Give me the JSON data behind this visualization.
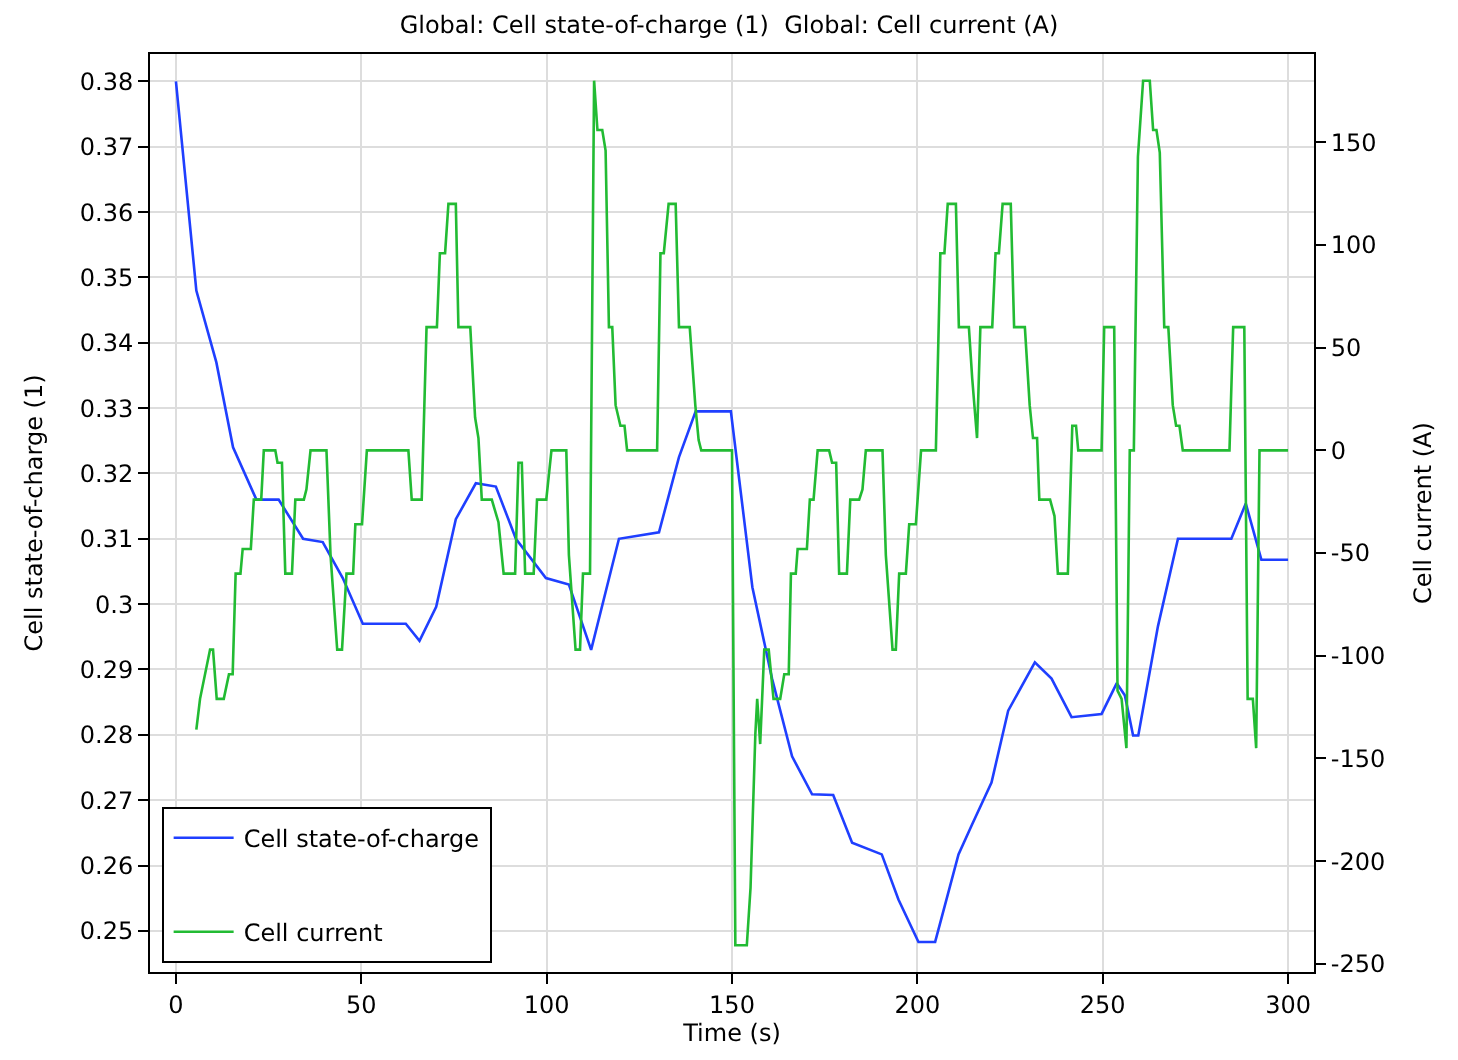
{
  "chart_data": {
    "type": "line",
    "title": "Global: Cell state-of-charge (1)  Global: Cell current (A)",
    "xlabel": "Time (s)",
    "ylabel": "Cell state-of-charge (1)",
    "y2label": "Cell current (A)",
    "xlim": [
      -7,
      307
    ],
    "xticks": [
      0,
      50,
      100,
      150,
      200,
      250,
      300
    ],
    "ylim": [
      0.2437,
      0.3842
    ],
    "yticks": [
      0.25,
      0.26,
      0.27,
      0.28,
      0.29,
      {
        "value": 0.3,
        "label": "0.3"
      },
      0.31,
      0.32,
      0.33,
      0.34,
      0.35,
      0.36,
      0.37,
      0.38
    ],
    "y2lim": [
      -254,
      193
    ],
    "y2ticks": [
      -250,
      -200,
      -150,
      -100,
      -50,
      0,
      50,
      100,
      150
    ],
    "grid": true,
    "legend": "bottom left",
    "line_style": "solid",
    "marker": "none",
    "series": [
      {
        "name": "Cell state-of-charge",
        "color": "#1f3fff",
        "x": [
          0,
          5.5,
          10.9,
          15.4,
          21.7,
          27.7,
          34.3,
          39.6,
          45,
          50.4,
          62,
          65.7,
          70.2,
          75.5,
          80.9,
          86.3,
          91.7,
          99.8,
          106,
          112,
          119.5,
          130.3,
          135.7,
          140.2,
          149.7,
          155.5,
          160.8,
          166.2,
          171.6,
          177.3,
          182.4,
          190.4,
          194.9,
          200.3,
          204.8,
          211.1,
          214.7,
          220,
          224.5,
          231.7,
          236.2,
          241.6,
          249.7,
          253.8,
          256,
          258.2,
          259.6,
          264.9,
          270.3,
          284.7,
          288.6,
          292.8,
          300
        ],
        "values": [
          0.38,
          0.348,
          0.337,
          0.324,
          0.316,
          0.316,
          0.31,
          0.3095,
          0.304,
          0.297,
          0.297,
          0.2944,
          0.2996,
          0.313,
          0.3185,
          0.318,
          0.31,
          0.304,
          0.303,
          0.293,
          0.31,
          0.311,
          0.3225,
          0.3295,
          0.3295,
          0.3026,
          0.2886,
          0.2767,
          0.2709,
          0.2708,
          0.2635,
          0.2617,
          0.2548,
          0.2483,
          0.2483,
          0.2617,
          0.2662,
          0.2727,
          0.2837,
          0.2911,
          0.2886,
          0.2827,
          0.2832,
          0.2879,
          0.286,
          0.2799,
          0.2799,
          0.2966,
          0.31,
          0.31,
          0.3154,
          0.3068,
          0.3068
        ]
      },
      {
        "name": "Cell current",
        "color": "#22bb33",
        "axis": "y2",
        "x": [
          5.5,
          6.5,
          9.2,
          10,
          11,
          12.9,
          14.3,
          15.3,
          16.1,
          17.4,
          18,
          20.2,
          21,
          23,
          23.7,
          26.8,
          27.4,
          28.6,
          29.5,
          31.3,
          32.2,
          34.5,
          35.2,
          36.3,
          40.6,
          41.7,
          43.5,
          44.8,
          46,
          47.8,
          48.4,
          50.2,
          51.5,
          62.7,
          63.6,
          66.3,
          67.6,
          70.4,
          71.2,
          72.6,
          73.5,
          75.5,
          76.2,
          79.4,
          80.7,
          81.6,
          82.5,
          85.2,
          87,
          88.4,
          91.5,
          92.4,
          93.3,
          94.2,
          96.5,
          97.4,
          99.9,
          101.3,
          105.3,
          106,
          107.8,
          109,
          109.8,
          111.7,
          112.8,
          113.7,
          115,
          115.9,
          116.8,
          117.7,
          118.6,
          119.9,
          121,
          121.7,
          129.8,
          130.7,
          131.6,
          132.9,
          134.8,
          135.7,
          138.6,
          140.1,
          141,
          141.7,
          150,
          150.9,
          154,
          155,
          156.3,
          156.8,
          157.6,
          158.7,
          159.9,
          161.2,
          163,
          164.1,
          165.3,
          165.9,
          167.2,
          167.7,
          170.2,
          171,
          172,
          173.1,
          176.2,
          177,
          178.1,
          178.9,
          181,
          181.9,
          184.3,
          185.2,
          186.1,
          190.6,
          191.5,
          193.3,
          194.2,
          195.1,
          196.9,
          197.8,
          199.6,
          201,
          205,
          206.2,
          207.3,
          208.2,
          210.4,
          211.2,
          213.9,
          214.8,
          216.1,
          217,
          220.2,
          221.1,
          222,
          223,
          225.2,
          226.1,
          229,
          230.3,
          231.2,
          232.3,
          232.9,
          235.8,
          237,
          237.9,
          240.6,
          241.8,
          242.8,
          243.4,
          249.7,
          250.4,
          253.1,
          254,
          255.1,
          256.4,
          257.3,
          258.4,
          259.5,
          260.9,
          262.7,
          263.6,
          264.5,
          265.4,
          266.6,
          267.7,
          268.9,
          269.8,
          270.7,
          271.6,
          284.2,
          285.2,
          288.2,
          289.1,
          290.5,
          291.4,
          292.3,
          300
        ],
        "values": [
          -136,
          -121,
          -97,
          -97,
          -121,
          -121,
          -109,
          -109,
          -60,
          -60,
          -48,
          -48,
          -24,
          -24,
          0,
          0,
          -6,
          -6,
          -60,
          -60,
          -24,
          -24,
          -19,
          0,
          0,
          -51,
          -97,
          -97,
          -60,
          -60,
          -36,
          -36,
          0,
          0,
          -24,
          -24,
          60,
          60,
          96,
          96,
          120,
          120,
          60,
          60,
          16,
          6,
          -24,
          -24,
          -35,
          -60,
          -60,
          -6,
          -6,
          -60,
          -60,
          -24,
          -24,
          0,
          0,
          -51,
          -97,
          -97,
          -60,
          -60,
          180,
          156,
          156,
          146,
          60,
          60,
          22,
          12,
          12,
          0,
          0,
          96,
          96,
          120,
          120,
          60,
          60,
          22,
          5,
          0,
          0,
          -241,
          -241,
          -213,
          -138,
          -121,
          -143,
          -97,
          -97,
          -121,
          -121,
          -109,
          -109,
          -60,
          -60,
          -48,
          -48,
          -24,
          -24,
          0,
          0,
          -6,
          -6,
          -60,
          -60,
          -24,
          -24,
          -19,
          0,
          0,
          -51,
          -97,
          -97,
          -60,
          -60,
          -36,
          -36,
          0,
          0,
          96,
          96,
          120,
          120,
          60,
          60,
          35,
          6,
          60,
          60,
          96,
          96,
          120,
          120,
          60,
          60,
          22,
          6,
          6,
          -24,
          -24,
          -32,
          -60,
          -60,
          12,
          12,
          0,
          0,
          60,
          60,
          -117,
          -121,
          -145,
          0,
          0,
          143,
          180,
          180,
          156,
          156,
          145,
          60,
          60,
          22,
          12,
          12,
          0,
          0,
          60,
          60,
          -121,
          -121,
          -145,
          0,
          0
        ]
      }
    ]
  }
}
